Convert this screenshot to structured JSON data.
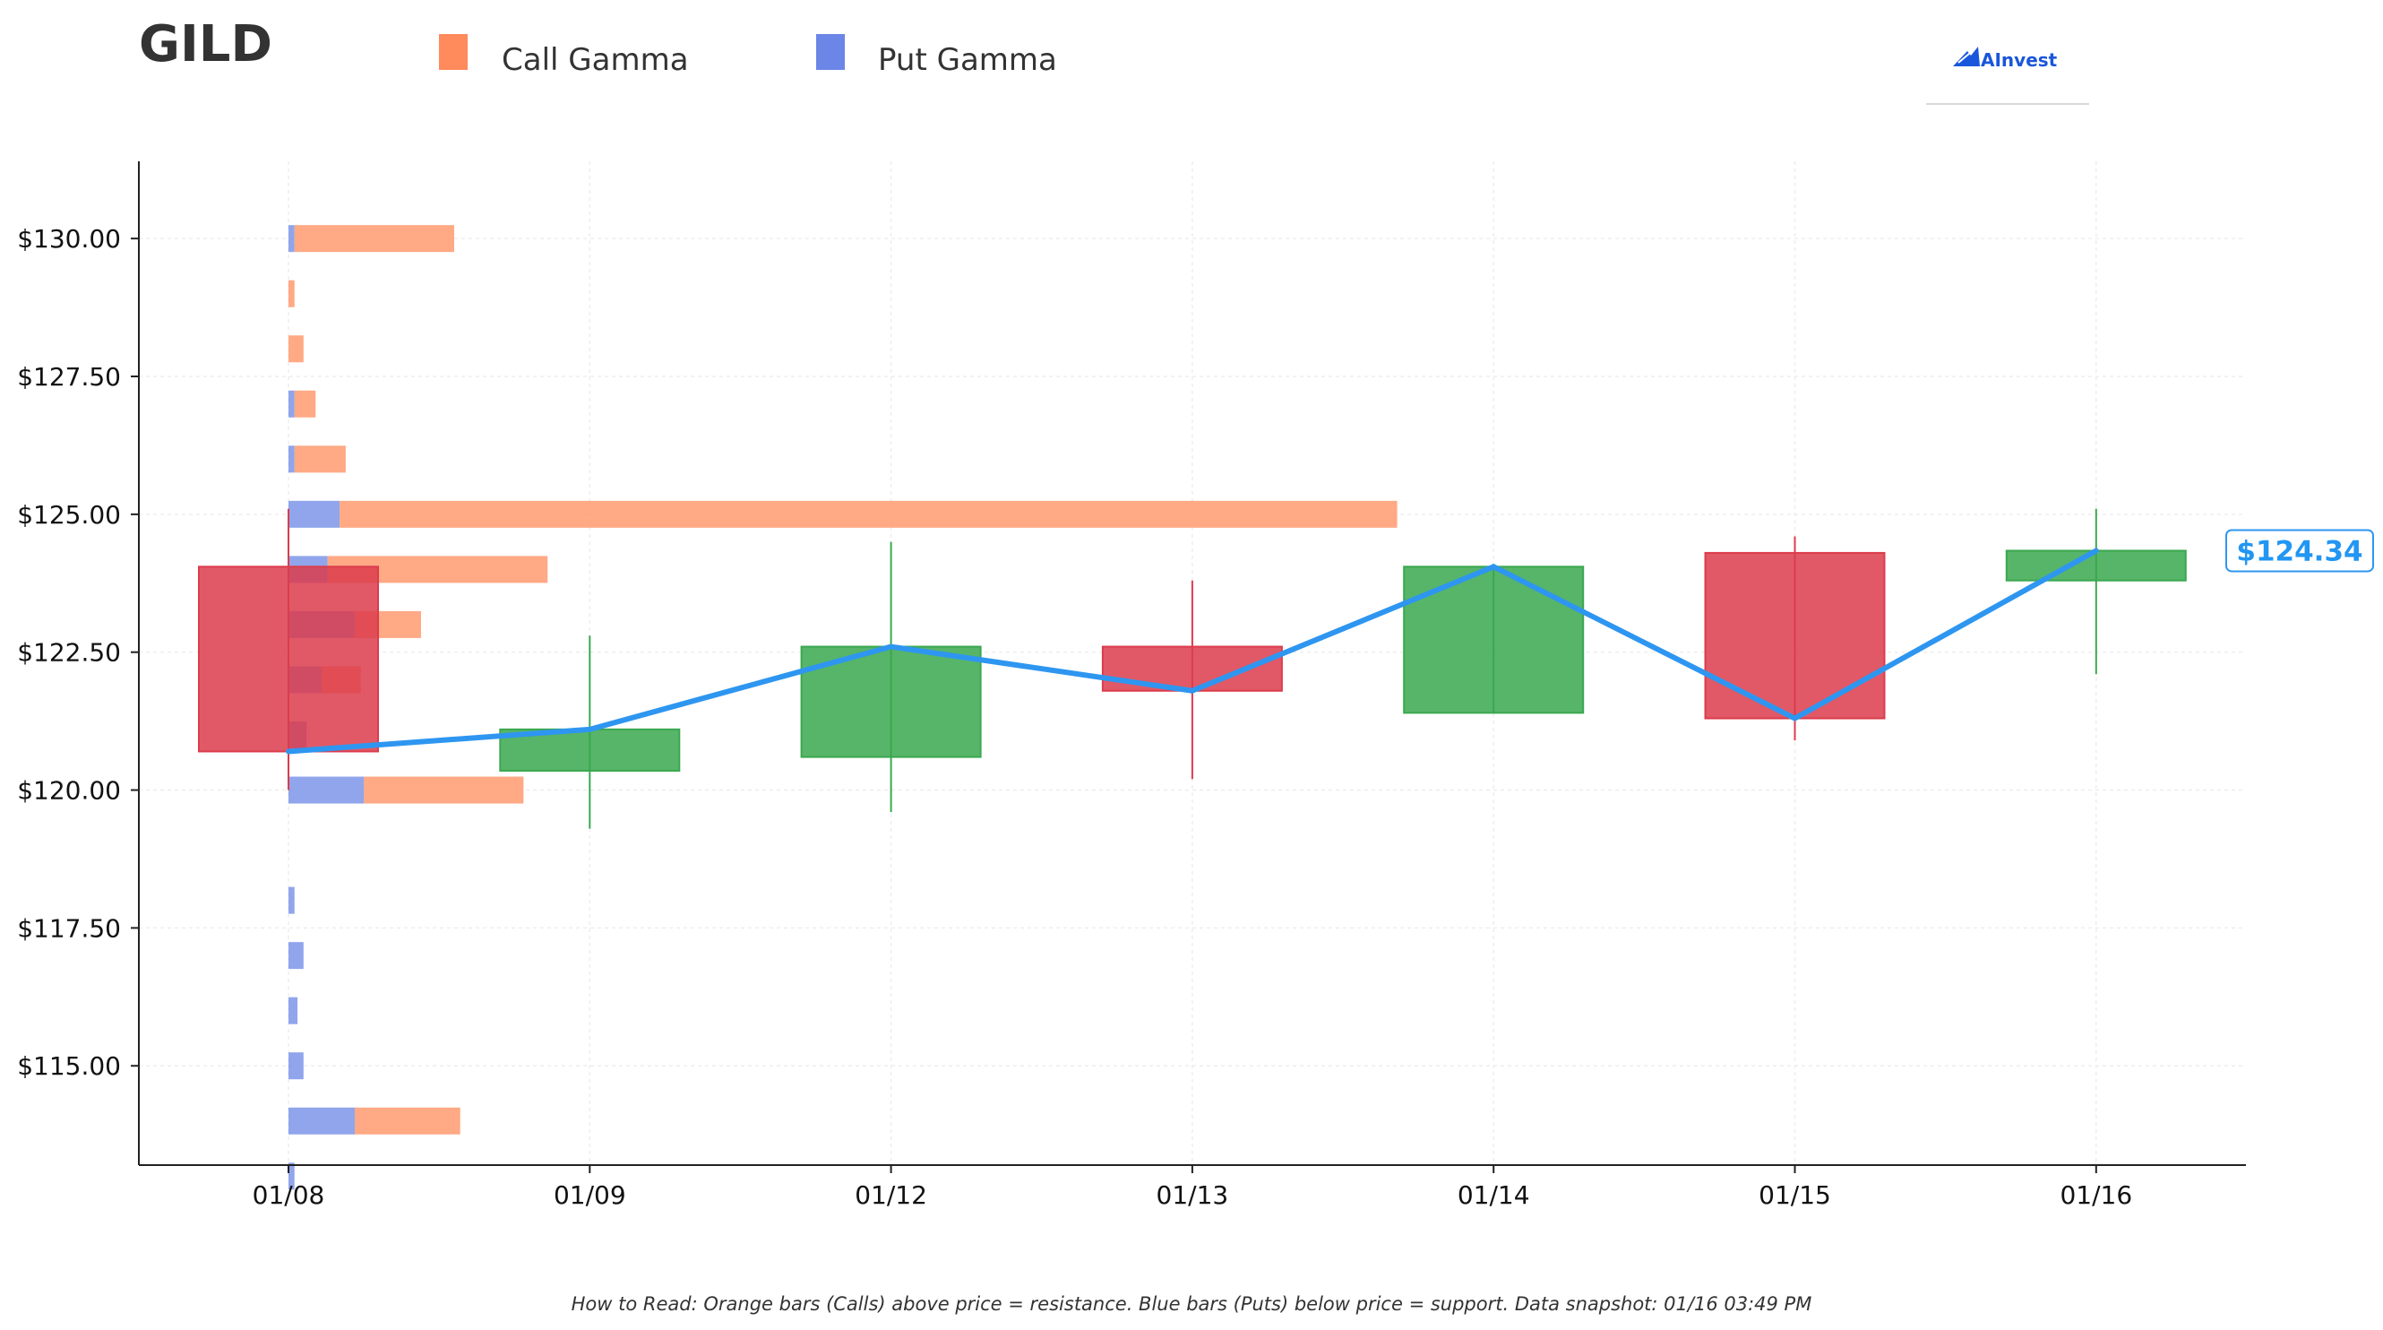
{
  "header": {
    "ticker": "GILD",
    "brand": "AInvest"
  },
  "legend": {
    "items": [
      {
        "label": "Call Gamma",
        "color": "#ff8a5c"
      },
      {
        "label": "Put Gamma",
        "color": "#6b86e6"
      }
    ]
  },
  "footer": {
    "note": "How to Read: Orange bars (Calls) above price = resistance. Blue bars (Puts) below price = support. Data snapshot: 01/16 03:49 PM"
  },
  "colors": {
    "up": "#3aa84f",
    "down": "#dc3c4c",
    "call": "#ff9a70",
    "put": "#7d95e8",
    "price_line": "#2e96f0",
    "axis": "#222222",
    "grid": "#eeeeee"
  },
  "chart_data": {
    "type": "candlestick",
    "x_categories": [
      "01/08",
      "01/09",
      "01/12",
      "01/13",
      "01/14",
      "01/15",
      "01/16"
    ],
    "ylim": [
      113.2,
      131.4
    ],
    "yticks": [
      115,
      117.5,
      120,
      122.5,
      125,
      127.5,
      130
    ],
    "ytick_labels": [
      "$115.00",
      "$117.50",
      "$120.00",
      "$122.50",
      "$125.00",
      "$127.50",
      "$130.00"
    ],
    "grid": true,
    "candles": [
      {
        "date": "01/08",
        "open": 124.05,
        "high": 125.1,
        "low": 120.0,
        "close": 120.7
      },
      {
        "date": "01/09",
        "open": 120.35,
        "high": 122.8,
        "low": 119.3,
        "close": 121.1
      },
      {
        "date": "01/12",
        "open": 120.6,
        "high": 124.5,
        "low": 119.6,
        "close": 122.6
      },
      {
        "date": "01/13",
        "open": 122.6,
        "high": 123.8,
        "low": 120.2,
        "close": 121.8
      },
      {
        "date": "01/14",
        "open": 121.4,
        "high": 124.1,
        "low": 121.4,
        "close": 124.05
      },
      {
        "date": "01/15",
        "open": 124.3,
        "high": 124.6,
        "low": 120.9,
        "close": 121.3
      },
      {
        "date": "01/16",
        "open": 123.8,
        "high": 125.1,
        "low": 122.1,
        "close": 124.34
      }
    ],
    "close_line": [
      120.7,
      121.1,
      122.6,
      121.8,
      124.05,
      121.3,
      124.34
    ],
    "last_price_label": "$124.34",
    "gamma_profile": {
      "note": "relative bar lengths in units of the 01/08 to 01/09 category spacing",
      "strikes": [
        113,
        114,
        115,
        116,
        117,
        118,
        119,
        120,
        121,
        122,
        123,
        124,
        125,
        126,
        127,
        128,
        129,
        130
      ],
      "put": [
        0.02,
        0.22,
        0.05,
        0.03,
        0.05,
        0.02,
        0.0,
        0.25,
        0.06,
        0.11,
        0.22,
        0.13,
        0.17,
        0.02,
        0.02,
        0.0,
        0.0,
        0.02
      ],
      "call": [
        0.0,
        0.35,
        0.0,
        0.0,
        0.0,
        0.0,
        0.0,
        0.53,
        0.0,
        0.13,
        0.22,
        0.73,
        3.51,
        0.17,
        0.07,
        0.05,
        0.02,
        0.53
      ]
    }
  }
}
